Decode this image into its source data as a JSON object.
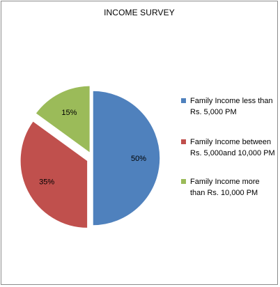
{
  "chart_data": {
    "type": "pie",
    "title": "INCOME SURVEY",
    "legend_position": "right",
    "slices": [
      {
        "label": "Family Income less than Rs. 5,000 PM",
        "value": 50,
        "display": "50%",
        "color": "#4f81bd",
        "exploded": false
      },
      {
        "label": "Family Income between Rs. 5,000and 10,000 PM",
        "value": 35,
        "display": "35%",
        "color": "#c0504d",
        "exploded": true
      },
      {
        "label": "Family Income more than Rs. 10,000 PM",
        "value": 15,
        "display": "15%",
        "color": "#9bbb59",
        "exploded": true
      }
    ]
  }
}
